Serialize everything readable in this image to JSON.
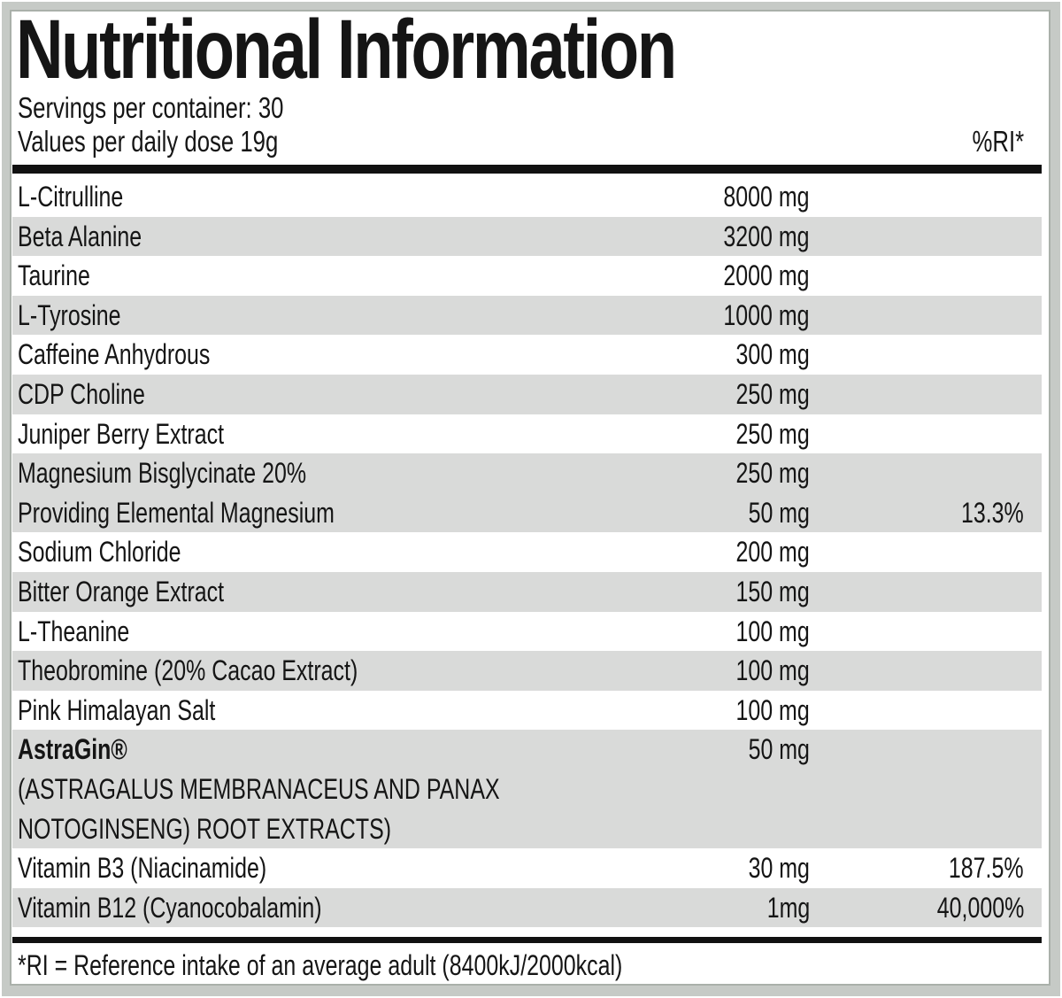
{
  "header": {
    "title": "Nutritional Information",
    "servings_line": "Servings per container: 30",
    "values_line": "Values per daily dose 19g",
    "ri_column_header": "%RI*"
  },
  "table": {
    "rows": [
      {
        "name": "L-Citrulline",
        "amount": "8000 mg",
        "ri": "",
        "shaded": false
      },
      {
        "name": "Beta Alanine",
        "amount": "3200 mg",
        "ri": "",
        "shaded": true
      },
      {
        "name": "Taurine",
        "amount": "2000 mg",
        "ri": "",
        "shaded": false
      },
      {
        "name": "L-Tyrosine",
        "amount": "1000 mg",
        "ri": "",
        "shaded": true
      },
      {
        "name": "Caffeine Anhydrous",
        "amount": "300 mg",
        "ri": "",
        "shaded": false
      },
      {
        "name": "CDP Choline",
        "amount": "250 mg",
        "ri": "",
        "shaded": true
      },
      {
        "name": "Juniper Berry Extract",
        "amount": "250 mg",
        "ri": "",
        "shaded": false
      },
      {
        "name": "Magnesium Bisglycinate 20%",
        "amount": "250 mg",
        "ri": "",
        "shaded": true
      },
      {
        "name": "Providing Elemental Magnesium",
        "amount": "50 mg",
        "ri": "13.3%",
        "shaded": true
      },
      {
        "name": "Sodium Chloride",
        "amount": "200 mg",
        "ri": "",
        "shaded": false
      },
      {
        "name": "Bitter Orange Extract",
        "amount": "150 mg",
        "ri": "",
        "shaded": true
      },
      {
        "name": "L-Theanine",
        "amount": "100 mg",
        "ri": "",
        "shaded": false
      },
      {
        "name": "Theobromine (20% Cacao Extract)",
        "amount": "100 mg",
        "ri": "",
        "shaded": true
      },
      {
        "name": "Pink Himalayan Salt",
        "amount": "100 mg",
        "ri": "",
        "shaded": false
      },
      {
        "name": "AstraGin®",
        "amount": "50 mg",
        "ri": "",
        "shaded": true,
        "bold": true,
        "sublines": [
          "(ASTRAGALUS MEMBRANACEUS AND PANAX",
          "NOTOGINSENG) ROOT EXTRACTS)"
        ]
      },
      {
        "name": "Vitamin B3 (Niacinamide)",
        "amount": "30 mg",
        "ri": "187.5%",
        "shaded": false
      },
      {
        "name": "Vitamin B12 (Cyanocobalamin)",
        "amount": "1mg",
        "ri": "40,000%",
        "shaded": true
      }
    ]
  },
  "footnote": "*RI = Reference intake of an average adult (8400kJ/2000kcal)",
  "colors": {
    "stripe": "#d9dad9",
    "rule": "#111111",
    "text": "#151515",
    "frame": "#c6cac6",
    "frame_edge": "#aab0aa",
    "background": "#ffffff"
  }
}
